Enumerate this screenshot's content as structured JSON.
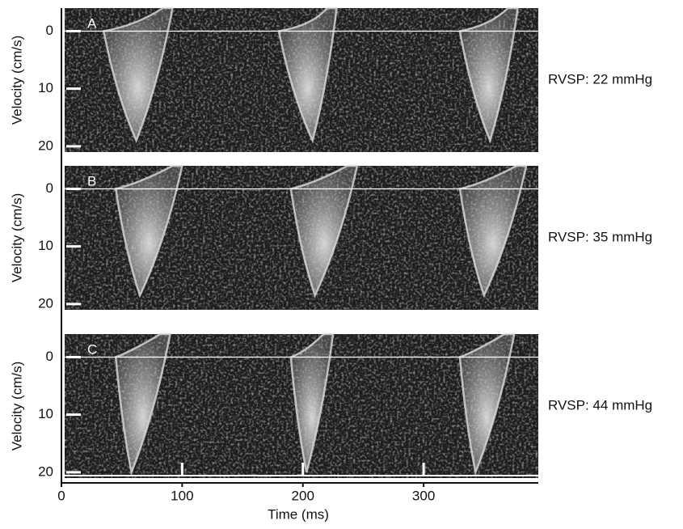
{
  "chart_data": [
    {
      "type": "image",
      "label": "A",
      "ylabel": "Velocity (cm/s)",
      "ylim": [
        -4,
        21
      ],
      "yticks": [
        0,
        10,
        20
      ],
      "annotation": "RVSP: 22 mmHg"
    },
    {
      "type": "image",
      "label": "B",
      "ylabel": "Velocity (cm/s)",
      "ylim": [
        -4,
        21
      ],
      "yticks": [
        0,
        10,
        20
      ],
      "annotation": "RVSP: 35 mmHg"
    },
    {
      "type": "image",
      "label": "C",
      "ylabel": "Velocity (cm/s)",
      "ylim": [
        -4,
        21
      ],
      "yticks": [
        0,
        10,
        20
      ],
      "annotation": "RVSP: 44 mmHg",
      "xlabel": "Time (ms)",
      "xlim": [
        0,
        395
      ],
      "xticks": [
        0,
        100,
        200,
        300
      ]
    }
  ]
}
